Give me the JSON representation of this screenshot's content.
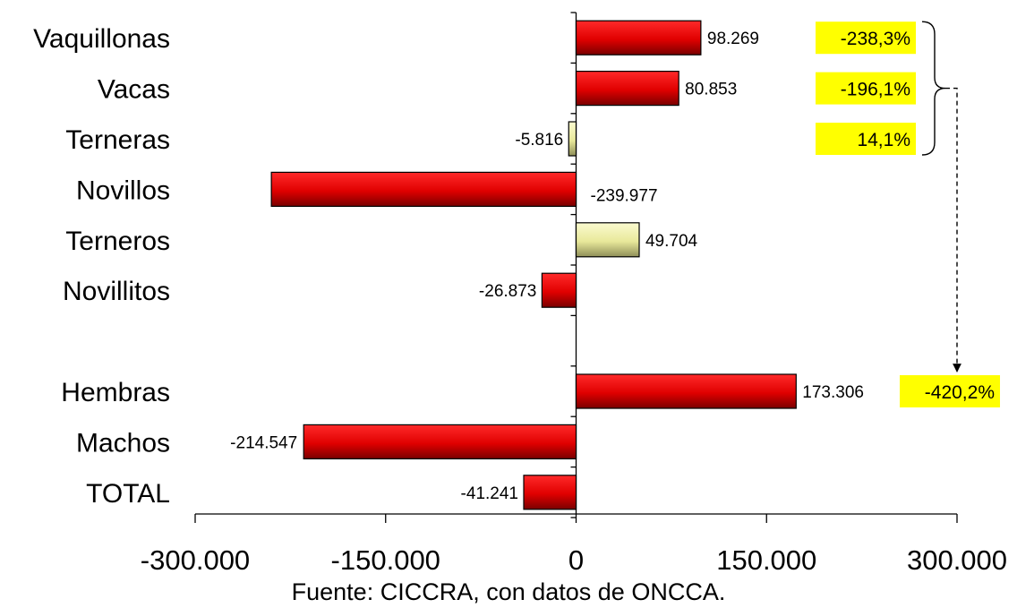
{
  "chart_data": {
    "type": "bar",
    "orientation": "horizontal",
    "categories": [
      "Vaquillonas",
      "Vacas",
      "Terneras",
      "Novillos",
      "Terneros",
      "Novillitos",
      "",
      "Hembras",
      "Machos",
      "TOTAL"
    ],
    "values": [
      98269,
      80853,
      -5816,
      -239977,
      49704,
      -26873,
      null,
      173306,
      -214547,
      -41241
    ],
    "value_labels": [
      "98.269",
      "80.853",
      "-5.816",
      "-239.977",
      "49.704",
      "-26.873",
      "",
      "173.306",
      "-214.547",
      "-41.241"
    ],
    "bar_colors": [
      "#e00000",
      "#e00000",
      "#eeee99",
      "#e00000",
      "#eeee99",
      "#e00000",
      null,
      "#e00000",
      "#e00000",
      "#e00000"
    ],
    "xlim": [
      -300000,
      300000
    ],
    "x_ticks": [
      -300000,
      -150000,
      0,
      150000,
      300000
    ],
    "x_tick_labels": [
      "-300.000",
      "-150.000",
      "0",
      "150.000",
      "300.000"
    ],
    "title": "",
    "xlabel": "",
    "ylabel": "",
    "grid": false,
    "annotations": [
      {
        "text": "-238,3%",
        "category": "Vaquillonas"
      },
      {
        "text": "-196,1%",
        "category": "Vacas"
      },
      {
        "text": "14,1%",
        "category": "Terneras"
      },
      {
        "text": "-420,2%",
        "category": "Hembras"
      }
    ],
    "annotation_color": "#ffff00",
    "source": "Fuente: CICCRA, con datos de ONCCA."
  }
}
